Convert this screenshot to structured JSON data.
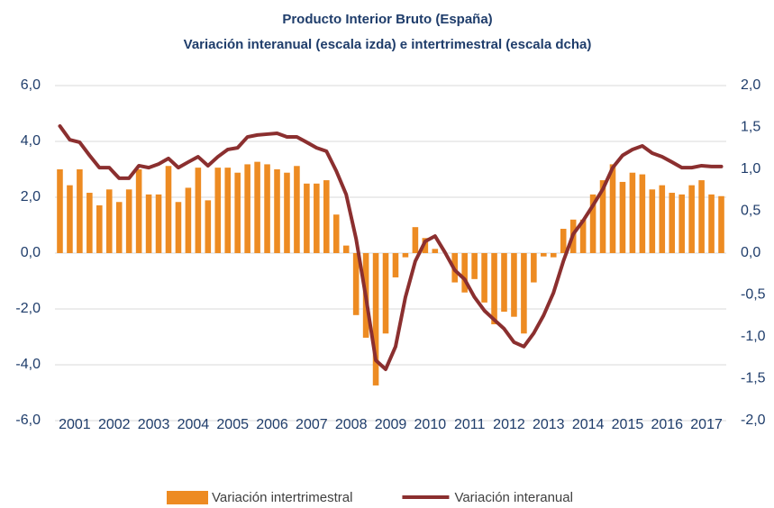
{
  "chart_data": {
    "type": "combo",
    "title": "Producto Interior Bruto (España)",
    "subtitle": "Variación interanual (escala izda) e intertrimestral (escala dcha)",
    "categories": [
      "2001",
      null,
      null,
      null,
      "2002",
      null,
      null,
      null,
      "2003",
      null,
      null,
      null,
      "2004",
      null,
      null,
      null,
      "2005",
      null,
      null,
      null,
      "2006",
      null,
      null,
      null,
      "2007",
      null,
      null,
      null,
      "2008",
      null,
      null,
      null,
      "2009",
      null,
      null,
      null,
      "2010",
      null,
      null,
      null,
      "2011",
      null,
      null,
      null,
      "2012",
      null,
      null,
      null,
      "2013",
      null,
      null,
      null,
      "2014",
      null,
      null,
      null,
      "2015",
      null,
      null,
      null,
      "2016",
      null,
      null,
      null,
      "2017",
      null,
      null,
      null
    ],
    "series": [
      {
        "name": "Variación intertrimestral",
        "type": "bar",
        "axis": "y2",
        "color": "#ed8b22",
        "values": [
          1.0,
          0.81,
          1.0,
          0.72,
          0.57,
          0.76,
          0.61,
          0.76,
          1.0,
          0.7,
          0.7,
          1.04,
          0.61,
          0.78,
          1.02,
          0.63,
          1.02,
          1.02,
          0.96,
          1.06,
          1.09,
          1.06,
          1.0,
          0.96,
          1.04,
          0.83,
          0.83,
          0.87,
          0.46,
          0.09,
          -0.74,
          -1.01,
          -1.58,
          -0.96,
          -0.29,
          -0.05,
          0.31,
          0.18,
          0.05,
          0.0,
          -0.35,
          -0.47,
          -0.31,
          -0.59,
          -0.85,
          -0.7,
          -0.76,
          -0.96,
          -0.35,
          -0.04,
          -0.05,
          0.29,
          0.4,
          0.4,
          0.7,
          0.87,
          1.06,
          0.85,
          0.96,
          0.94,
          0.76,
          0.81,
          0.72,
          0.7,
          0.81,
          0.87,
          0.7,
          0.68
        ]
      },
      {
        "name": "Variación interanual",
        "type": "line",
        "axis": "y",
        "color": "#8b2f2f",
        "values": [
          4.55,
          4.06,
          3.97,
          3.5,
          3.06,
          3.06,
          2.68,
          2.68,
          3.13,
          3.06,
          3.19,
          3.39,
          3.06,
          3.26,
          3.45,
          3.13,
          3.45,
          3.71,
          3.77,
          4.16,
          4.23,
          4.26,
          4.29,
          4.16,
          4.16,
          3.97,
          3.77,
          3.65,
          2.94,
          2.1,
          0.52,
          -1.58,
          -3.84,
          -4.16,
          -3.35,
          -1.58,
          -0.29,
          0.42,
          0.61,
          0.03,
          -0.61,
          -0.94,
          -1.58,
          -2.06,
          -2.39,
          -2.71,
          -3.19,
          -3.35,
          -2.87,
          -2.23,
          -1.42,
          -0.29,
          0.68,
          1.16,
          1.71,
          2.29,
          3.06,
          3.5,
          3.71,
          3.84,
          3.58,
          3.45,
          3.26,
          3.06,
          3.06,
          3.13,
          3.1,
          3.1
        ]
      }
    ],
    "ylim": [
      -6,
      6
    ],
    "yticks": [
      {
        "value": 6,
        "label": "6,0"
      },
      {
        "value": 4,
        "label": "4,0"
      },
      {
        "value": 2,
        "label": "2,0"
      },
      {
        "value": 0,
        "label": "0,0"
      },
      {
        "value": -2,
        "label": "-2,0"
      },
      {
        "value": -4,
        "label": "-4,0"
      },
      {
        "value": -6,
        "label": "-6,0"
      }
    ],
    "y2lim": [
      -2,
      2
    ],
    "y2ticks": [
      {
        "value": 2,
        "label": "2,0"
      },
      {
        "value": 1.5,
        "label": "1,5"
      },
      {
        "value": 1,
        "label": "1,0"
      },
      {
        "value": 0.5,
        "label": "0,5"
      },
      {
        "value": 0,
        "label": "0,0"
      },
      {
        "value": -0.5,
        "label": "-0,5"
      },
      {
        "value": -1,
        "label": "-1,0"
      },
      {
        "value": -1.5,
        "label": "-1,5"
      },
      {
        "value": -2,
        "label": "-2,0"
      }
    ],
    "grid": true,
    "legend": "bottom"
  }
}
